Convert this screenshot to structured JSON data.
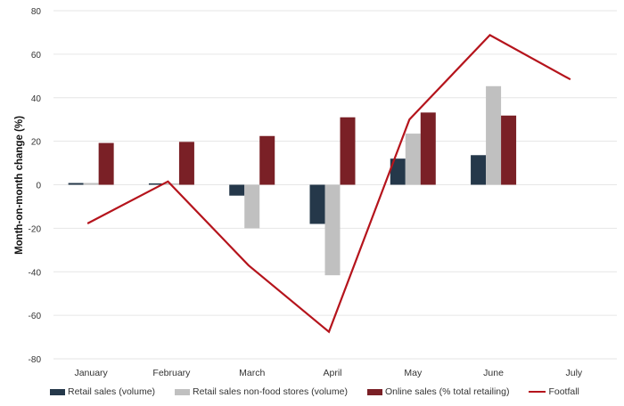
{
  "chart_data": {
    "type": "bar",
    "title": "",
    "xlabel": "",
    "ylabel": "Month-on-month change (%)",
    "ylim": [
      -80,
      80
    ],
    "yticks": [
      80,
      60,
      40,
      20,
      0,
      -20,
      -40,
      -60,
      -80
    ],
    "grid": true,
    "legend_position": "bottom",
    "categories": [
      "January",
      "February",
      "March",
      "April",
      "May",
      "June",
      "July"
    ],
    "series": [
      {
        "name": "Retail sales (volume)",
        "kind": "bar",
        "color": "#25384a",
        "values": [
          0.8,
          -0.3,
          -5,
          -18,
          12,
          13.6,
          null
        ]
      },
      {
        "name": "Retail sales non-food stores (volume)",
        "kind": "bar",
        "color": "#c0c0c0",
        "values": [
          0.8,
          0,
          -20,
          -41.6,
          23.5,
          45.3,
          null
        ]
      },
      {
        "name": "Online sales (% total retailing)",
        "kind": "bar",
        "color": "#7a2026",
        "values": [
          19.2,
          19.7,
          22.4,
          31,
          33.2,
          31.8,
          null
        ]
      },
      {
        "name": "Footfall",
        "kind": "line",
        "color": "#b5141c",
        "values": [
          -17.8,
          1.5,
          -37,
          -67.6,
          30,
          68.8,
          48.4
        ]
      }
    ]
  }
}
